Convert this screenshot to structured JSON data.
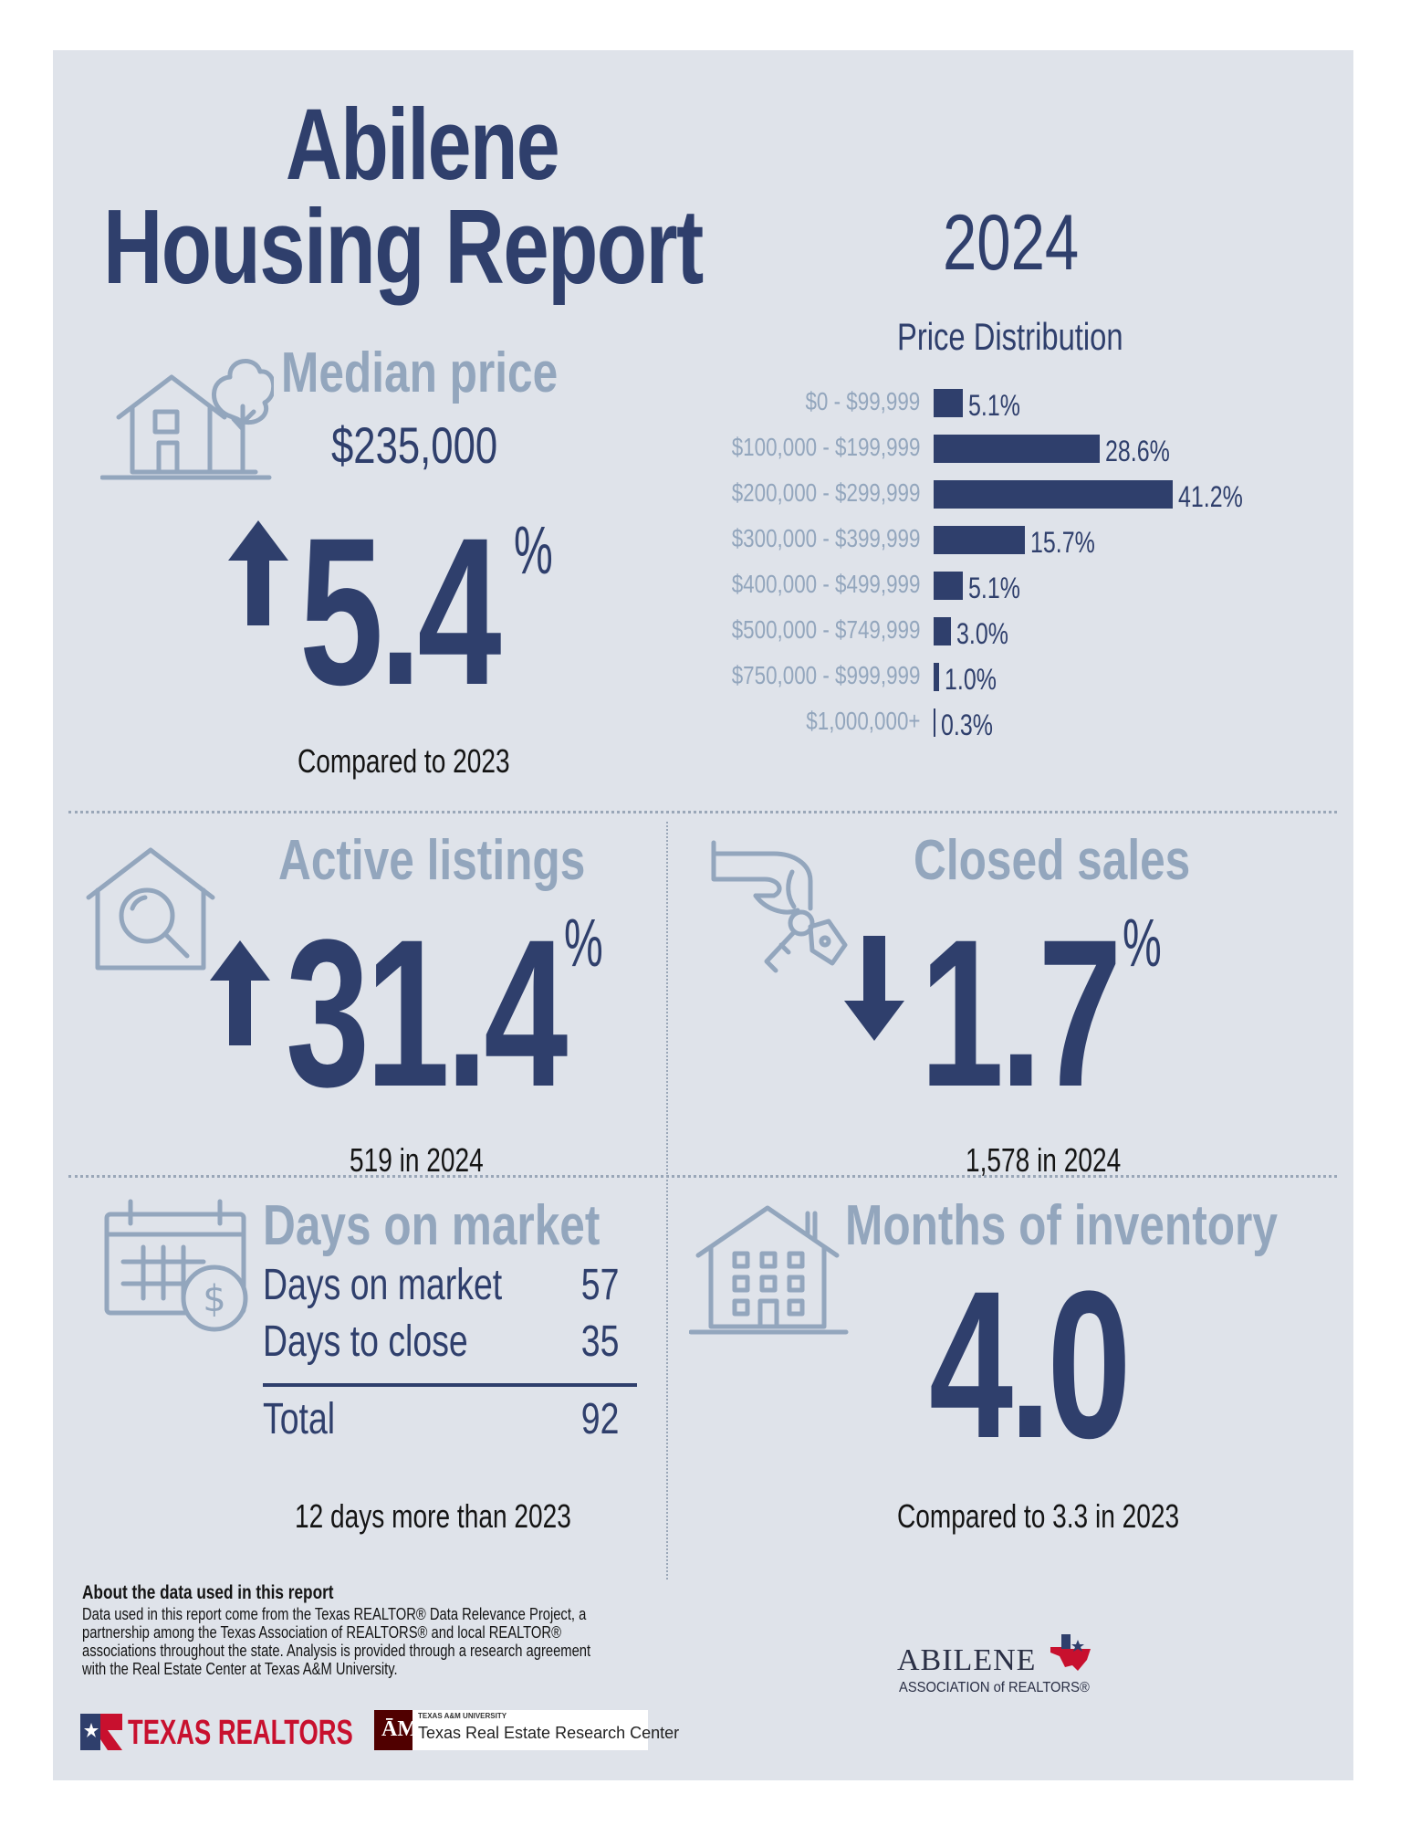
{
  "header": {
    "title_line1": "Abilene",
    "title_line2": "Housing Report",
    "year": "2024"
  },
  "median_price": {
    "heading": "Median price",
    "value": "$235,000",
    "change": "5.4",
    "unit": "%",
    "direction": "up",
    "caption": "Compared to 2023"
  },
  "chart_data": {
    "type": "bar",
    "orientation": "horizontal",
    "title": "Price Distribution",
    "categories": [
      "$0 - $99,999",
      "$100,000 - $199,999",
      "$200,000 - $299,999",
      "$300,000 - $399,999",
      "$400,000 - $499,999",
      "$500,000 - $749,999",
      "$750,000 - $999,999",
      "$1,000,000+"
    ],
    "values": [
      5.1,
      28.6,
      41.2,
      15.7,
      5.1,
      3.0,
      1.0,
      0.3
    ],
    "labels": [
      "5.1%",
      "28.6%",
      "41.2%",
      "15.7%",
      "5.1%",
      "3.0%",
      "1.0%",
      "0.3%"
    ],
    "xlim": [
      0,
      41.2
    ]
  },
  "active_listings": {
    "heading": "Active listings",
    "change": "31.4",
    "unit": "%",
    "direction": "up",
    "caption": "519 in 2024"
  },
  "closed_sales": {
    "heading": "Closed sales",
    "change": "1.7",
    "unit": "%",
    "direction": "down",
    "caption": "1,578 in 2024"
  },
  "days_on_market": {
    "heading": "Days on market",
    "rows": [
      {
        "label": "Days on market",
        "value": "57"
      },
      {
        "label": "Days to close",
        "value": "35"
      }
    ],
    "total": {
      "label": "Total",
      "value": "92"
    },
    "caption": "12 days more than 2023"
  },
  "months_of_inventory": {
    "heading": "Months of inventory",
    "value": "4.0",
    "caption": "Compared to 3.3 in 2023"
  },
  "about": {
    "heading": "About the data used in this report",
    "text": "Data used in this report come from the Texas REALTOR® Data Relevance Project, a partnership among the Texas Association of REALTORS® and local REALTOR® associations throughout the state. Analysis is provided through a research agreement with the Real Estate Center at Texas A&M University."
  },
  "logos": {
    "texas_realtors": "TEXAS REALTORS",
    "tamu_small": "TEXAS A&M UNIVERSITY",
    "tamu_center": "Texas Real Estate Research Center",
    "abilene_name": "ABILENE",
    "abilene_assoc": "ASSOCIATION of REALTORS®"
  },
  "colors": {
    "navy": "#2f3f6c",
    "light_blue": "#93a6bd",
    "card_bg": "#dfe3ea",
    "maroon": "#500000",
    "red": "#c8102e"
  }
}
